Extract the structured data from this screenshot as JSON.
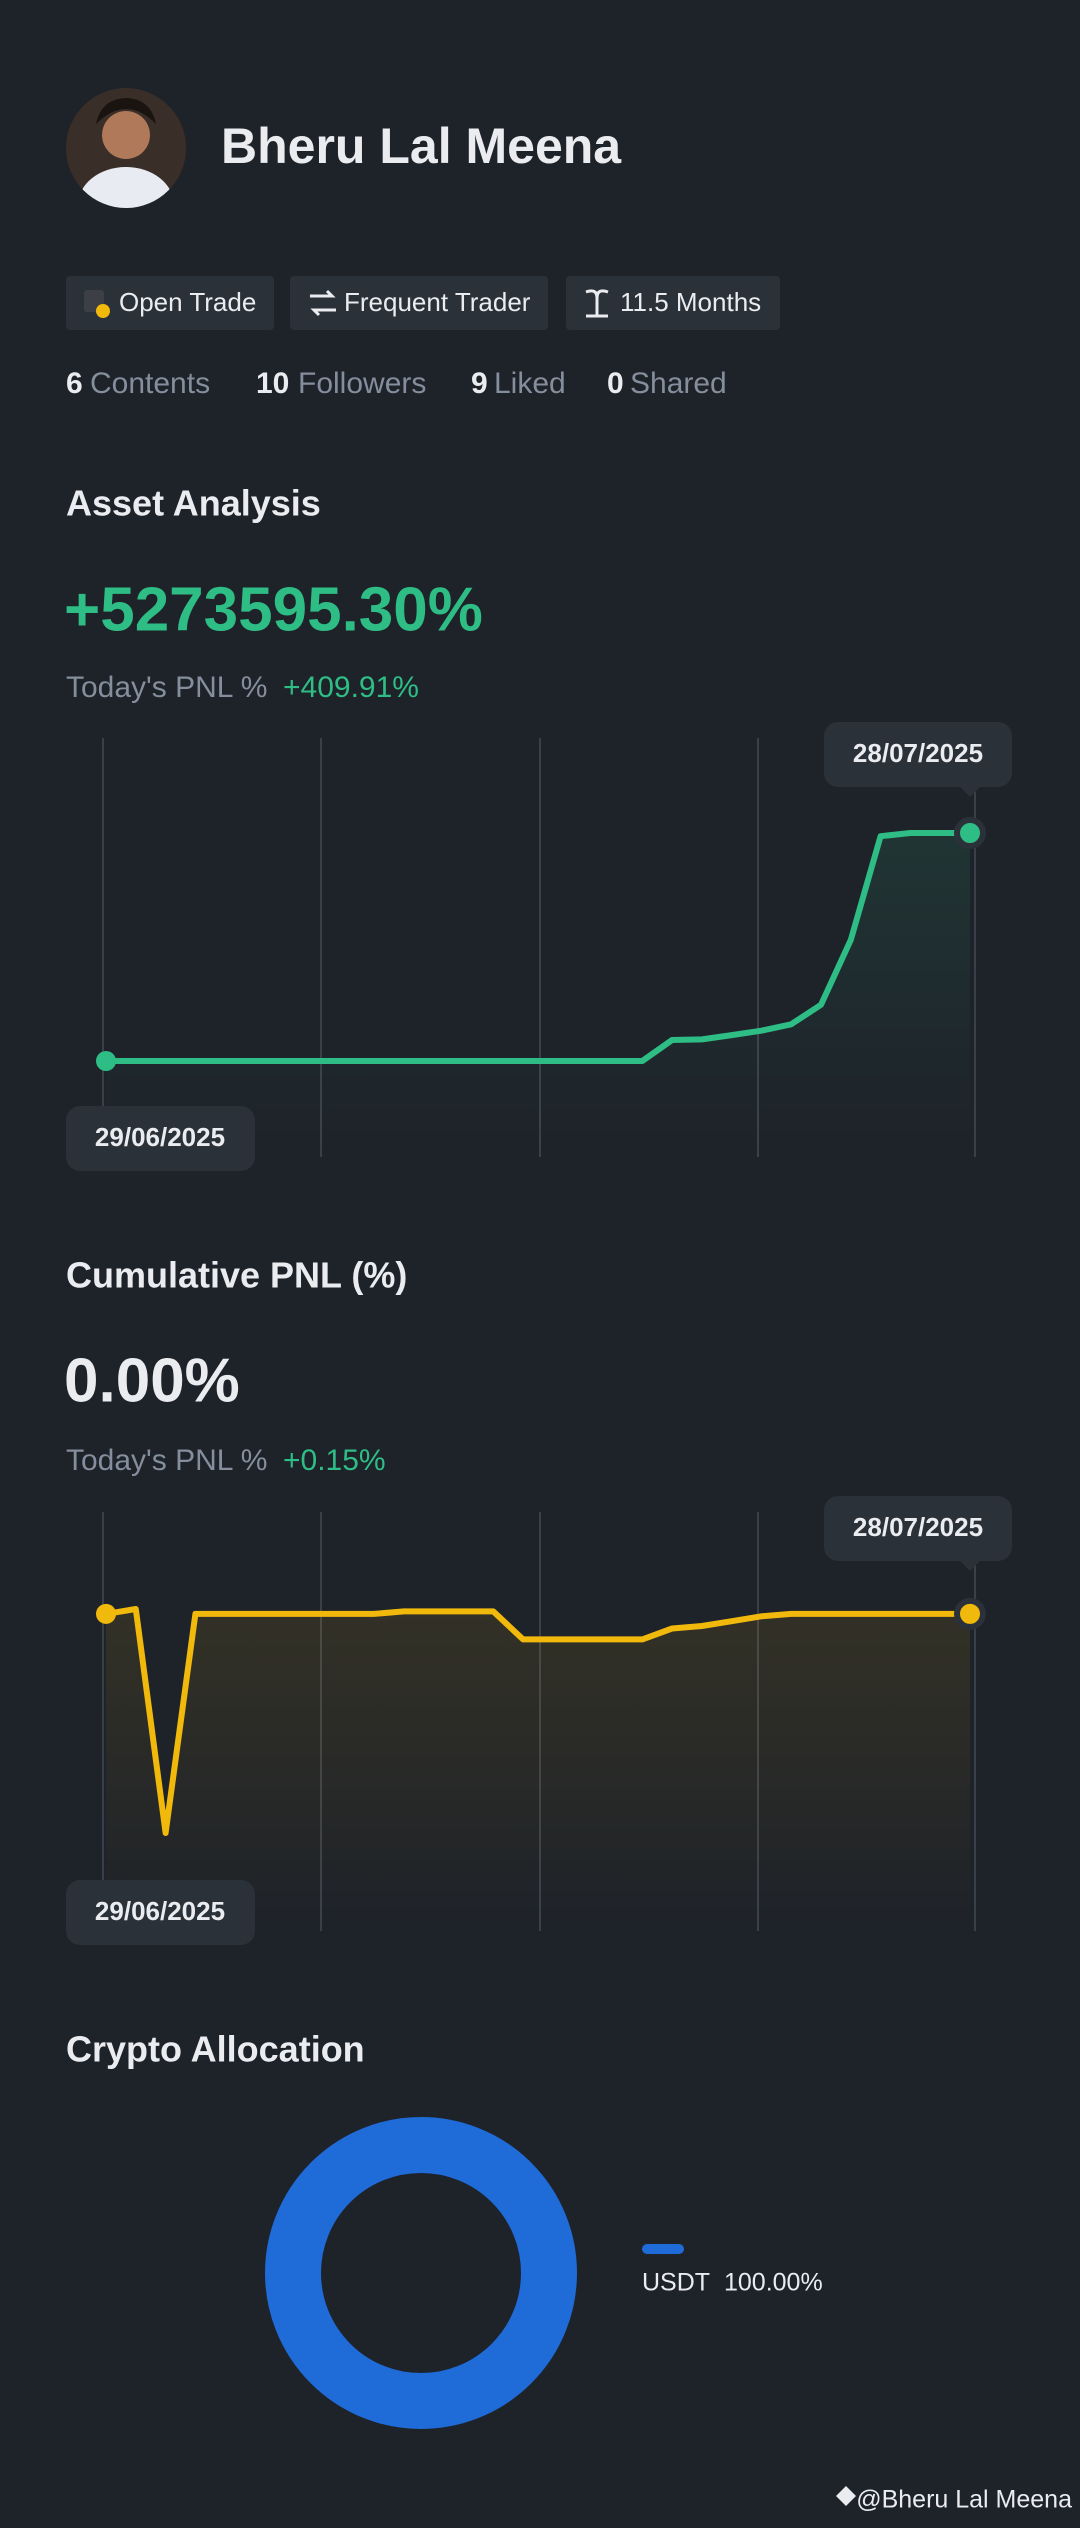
{
  "profile": {
    "name": "Bheru Lal Meena",
    "badges": [
      "Open Trade",
      "Frequent Trader",
      "11.5 Months"
    ],
    "stats": [
      {
        "value": 6,
        "label": "Contents"
      },
      {
        "value": 10,
        "label": "Followers"
      },
      {
        "value": 9,
        "label": "Liked"
      },
      {
        "value": 0,
        "label": "Shared"
      }
    ]
  },
  "asset_analysis": {
    "title": "Asset Analysis",
    "value": "+5273595.30%",
    "today_label": "Today's PNL %",
    "today_value": "+409.91%",
    "chart": {
      "type": "line",
      "color": "#2ebd85",
      "start_date": "29/06/2025",
      "end_date": "28/07/2025",
      "values": [
        0,
        0,
        0,
        0,
        0,
        0,
        0,
        0,
        0,
        0,
        0,
        0,
        0,
        0,
        0,
        0,
        0,
        0,
        0,
        486000,
        500000,
        600000,
        700000,
        850000,
        1300000,
        2800000,
        5200000,
        5273595.3,
        5273595.3,
        5273595.3
      ]
    }
  },
  "cumulative_pnl": {
    "title": "Cumulative PNL (%)",
    "value": "0.00%",
    "today_label": "Today's PNL %",
    "today_value": "+0.15%",
    "chart": {
      "type": "line",
      "color": "#f0b90b",
      "start_date": "29/06/2025",
      "end_date": "28/07/2025",
      "values": [
        0,
        0.2,
        -9,
        0,
        0,
        0,
        0,
        0,
        0,
        0,
        0.1,
        0.1,
        0.1,
        0.1,
        -1.05,
        -1.05,
        -1.05,
        -1.05,
        -1.05,
        -0.6,
        -0.5,
        -0.3,
        -0.1,
        0,
        0,
        0,
        0,
        0,
        0,
        0
      ]
    }
  },
  "crypto_allocation": {
    "title": "Crypto Allocation",
    "chart": {
      "type": "pie",
      "categories": [
        "USDT"
      ],
      "values": [
        100
      ],
      "value_labels": [
        "100.00%"
      ],
      "colors": [
        "#1f6bd8"
      ]
    }
  },
  "footer": "@Bheru Lal Meena"
}
